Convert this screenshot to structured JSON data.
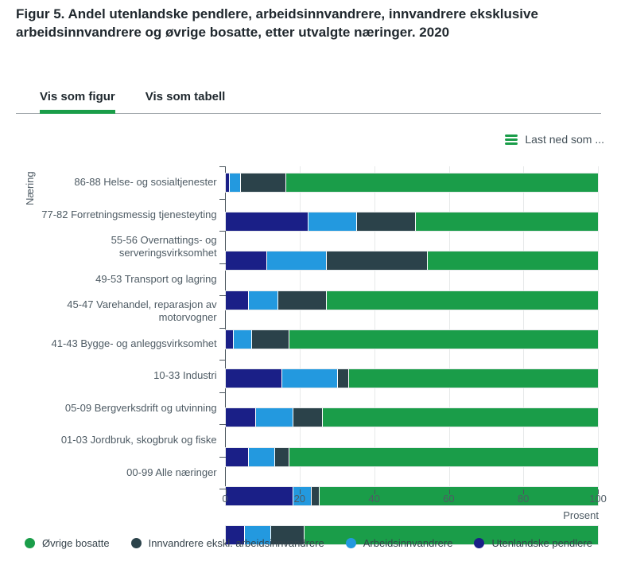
{
  "title": "Figur 5. Andel utenlandske pendlere, arbeidsinnvandrere, innvandrere eksklusive arbeidsinnvandrere og øvrige bosatte, etter utvalgte næringer. 2020",
  "tabs": {
    "figur": "Vis som figur",
    "tabell": "Vis som tabell",
    "active_tab": "Vis som figur",
    "active_color": "#1a9d49"
  },
  "download": {
    "label": "Last ned som ...",
    "icon": "hamburger-icon",
    "icon_color": "#1a9d49"
  },
  "chart_data": {
    "type": "bar",
    "orientation": "horizontal",
    "stacked": true,
    "grid": true,
    "xlabel": "Prosent",
    "ylabel": "Næring",
    "xlim": [
      0,
      100
    ],
    "xticks": [
      0,
      20,
      40,
      60,
      80,
      100
    ],
    "categories": [
      "86-88 Helse- og sosialtjenester",
      "77-82 Forretningsmessig tjenesteyting",
      "55-56 Overnattings- og serveringsvirksomhet",
      "49-53 Transport og lagring",
      "45-47 Varehandel, reparasjon av motorvogner",
      "41-43 Bygge- og anleggsvirksomhet",
      "10-33 Industri",
      "05-09 Bergverksdrift og utvinning",
      "01-03 Jordbruk, skogbruk og fiske",
      "00-99 Alle næringer"
    ],
    "series": [
      {
        "name": "Utenlandske pendlere",
        "color": "#1a1f87",
        "values": [
          1,
          22,
          11,
          6,
          2,
          15,
          8,
          6,
          18,
          5
        ]
      },
      {
        "name": "Arbeidsinnvandrere",
        "color": "#2399df",
        "values": [
          3,
          13,
          16,
          8,
          5,
          15,
          10,
          7,
          5,
          7
        ]
      },
      {
        "name": "Innvandrere ekskl. arbeidsinnvandrere",
        "color": "#2b424a",
        "values": [
          12,
          16,
          27,
          13,
          10,
          3,
          8,
          4,
          2,
          9
        ]
      },
      {
        "name": "Øvrige bosatte",
        "color": "#1a9d49",
        "values": [
          84,
          49,
          46,
          73,
          83,
          67,
          74,
          83,
          75,
          79
        ]
      }
    ],
    "legend": [
      "Øvrige bosatte",
      "Innvandrere ekskl. arbeidsinnvandrere",
      "Arbeidsinnvandrere",
      "Utenlandske pendlere"
    ],
    "legend_position": "bottom"
  }
}
